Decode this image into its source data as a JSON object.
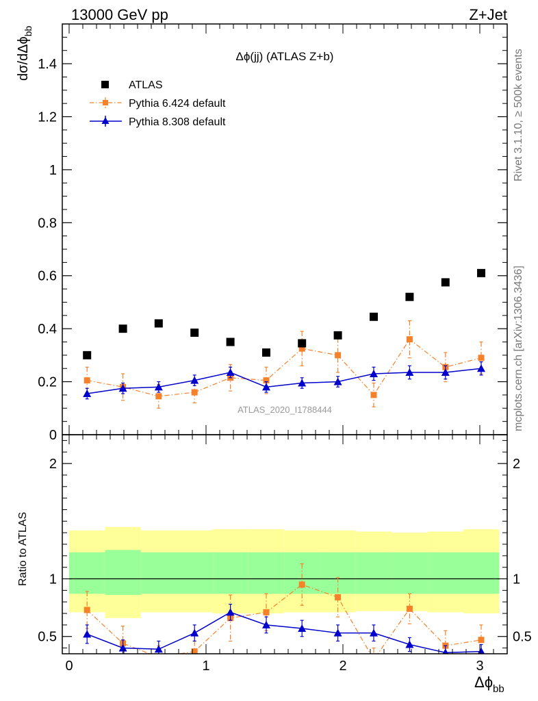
{
  "header": {
    "left": "13000 GeV pp",
    "right": "Z+Jet"
  },
  "side_labels": {
    "top": "Rivet 3.1.10, ≥ 500k events",
    "bottom": "mcplots.cern.ch [arXiv:1306.3436]"
  },
  "watermark": "ATLAS_2020_I1788444",
  "colors": {
    "atlas": "#000000",
    "pythia6": "#f5822a",
    "pythia8": "#0000cc",
    "band_inner": "#99ff99",
    "band_outer": "#ffff99"
  },
  "chart_data": [
    {
      "type": "scatter",
      "title": "Δϕ(jj) (ATLAS Z+b)",
      "ylabel_main": "dσ/dΔϕ",
      "ylabel_sub": "bb",
      "xlim": [
        -0.05,
        3.2
      ],
      "ylim": [
        0,
        1.55
      ],
      "yticks": [
        0,
        0.2,
        0.4,
        0.6,
        0.8,
        1,
        1.2,
        1.4
      ],
      "ytick_labels": [
        "0",
        "0.2",
        "0.4",
        "0.6",
        "0.8",
        "1",
        "1.2",
        "1.4"
      ],
      "legend_position": "top-left",
      "x": [
        0.131,
        0.393,
        0.654,
        0.916,
        1.178,
        1.44,
        1.701,
        1.963,
        2.225,
        2.487,
        2.749,
        3.01
      ],
      "series": [
        {
          "name": "ATLAS",
          "style": "markers",
          "values": [
            0.3,
            0.4,
            0.42,
            0.385,
            0.35,
            0.31,
            0.345,
            0.375,
            0.445,
            0.52,
            0.575,
            0.61
          ],
          "errors": [
            0,
            0,
            0,
            0,
            0,
            0,
            0,
            0,
            0,
            0,
            0,
            0
          ]
        },
        {
          "name": "Pythia 6.424 default",
          "style": "dashdot-square",
          "values": [
            0.205,
            0.18,
            0.145,
            0.16,
            0.215,
            0.205,
            0.325,
            0.3,
            0.15,
            0.36,
            0.255,
            0.29
          ],
          "errors": [
            0.05,
            0.05,
            0.045,
            0.04,
            0.05,
            0.05,
            0.065,
            0.065,
            0.045,
            0.07,
            0.055,
            0.06
          ]
        },
        {
          "name": "Pythia 8.308 default",
          "style": "solid-triangle",
          "values": [
            0.155,
            0.175,
            0.18,
            0.205,
            0.235,
            0.18,
            0.195,
            0.2,
            0.23,
            0.235,
            0.235,
            0.25
          ],
          "errors": [
            0.02,
            0.02,
            0.02,
            0.02,
            0.02,
            0.02,
            0.02,
            0.02,
            0.025,
            0.025,
            0.025,
            0.025
          ]
        }
      ]
    },
    {
      "type": "line",
      "ylabel": "Ratio to ATLAS",
      "xlabel_main": "Δϕ",
      "xlabel_sub": "bb",
      "xlim": [
        -0.05,
        3.2
      ],
      "ylim": [
        0.35,
        2.25
      ],
      "xticks": [
        0,
        1,
        2,
        3
      ],
      "xtick_labels": [
        "0",
        "1",
        "2",
        "3"
      ],
      "yticks": [
        0.5,
        1,
        2
      ],
      "ytick_labels": [
        "0.5",
        "1",
        "2"
      ],
      "reference_line": 1,
      "x": [
        0.131,
        0.393,
        0.654,
        0.916,
        1.178,
        1.44,
        1.701,
        1.963,
        2.225,
        2.487,
        2.749,
        3.01
      ],
      "bin_edges": [
        0,
        0.262,
        0.524,
        0.785,
        1.047,
        1.309,
        1.571,
        1.833,
        2.094,
        2.356,
        2.618,
        2.88,
        3.142
      ],
      "band_inner": {
        "lower": [
          0.87,
          0.86,
          0.87,
          0.87,
          0.87,
          0.87,
          0.87,
          0.87,
          0.87,
          0.87,
          0.87,
          0.87
        ],
        "upper": [
          1.23,
          1.25,
          1.23,
          1.23,
          1.23,
          1.23,
          1.23,
          1.23,
          1.23,
          1.23,
          1.23,
          1.23
        ]
      },
      "band_outer": {
        "lower": [
          0.71,
          0.66,
          0.71,
          0.71,
          0.7,
          0.7,
          0.71,
          0.71,
          0.72,
          0.72,
          0.71,
          0.7
        ],
        "upper": [
          1.42,
          1.45,
          1.42,
          1.42,
          1.43,
          1.43,
          1.42,
          1.42,
          1.41,
          1.4,
          1.41,
          1.43
        ]
      },
      "series": [
        {
          "name": "Pythia 6.424 default",
          "values": [
            0.73,
            0.44,
            0.32,
            0.37,
            0.66,
            0.71,
            0.95,
            0.84,
            0.3,
            0.74,
            0.42,
            0.47
          ],
          "errors": [
            0.16,
            0.15,
            0.1,
            0.09,
            0.2,
            0.16,
            0.18,
            0.17,
            0.1,
            0.13,
            0.13,
            0.13
          ]
        },
        {
          "name": "Pythia 8.308 default",
          "values": [
            0.52,
            0.4,
            0.39,
            0.53,
            0.71,
            0.6,
            0.57,
            0.53,
            0.53,
            0.43,
            0.36,
            0.37
          ],
          "errors": [
            0.08,
            0.07,
            0.07,
            0.07,
            0.07,
            0.07,
            0.07,
            0.07,
            0.07,
            0.06,
            0.06,
            0.06
          ]
        }
      ]
    }
  ]
}
